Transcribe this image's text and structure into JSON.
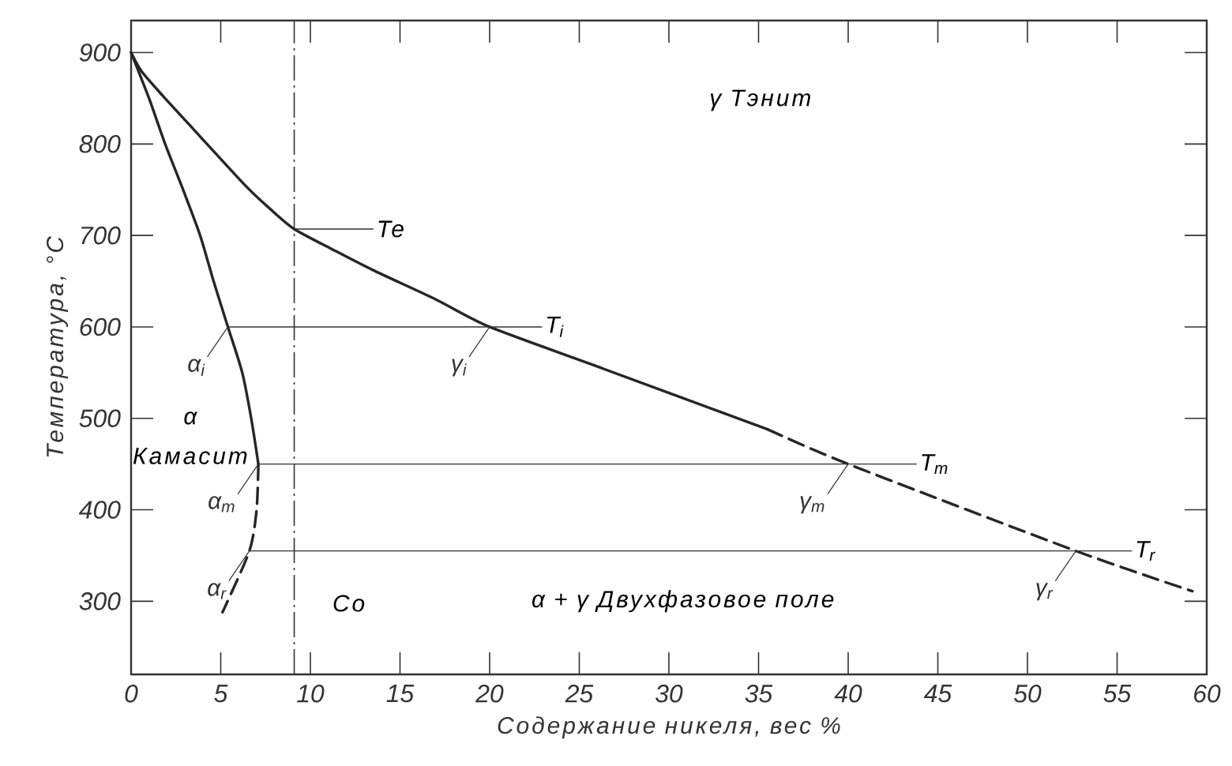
{
  "chart_data": {
    "type": "line",
    "xlabel": "Содержание никеля, вес %",
    "ylabel": "Температура, °C",
    "xlim": [
      0,
      60
    ],
    "ylim": [
      220,
      935
    ],
    "xticks": [
      0,
      5,
      10,
      15,
      20,
      25,
      30,
      35,
      40,
      45,
      50,
      55,
      60
    ],
    "yticks": [
      300,
      400,
      500,
      600,
      700,
      800,
      900
    ],
    "series": [
      {
        "color": "#262626",
        "line_style": "solid",
        "x": [
          0,
          1.0,
          1.9,
          2.9,
          3.85,
          4.6,
          5.4,
          6.2,
          6.7,
          7.1
        ],
        "values": [
          900,
          850,
          800,
          750,
          700,
          650,
          600,
          550,
          500,
          450
        ]
      },
      {
        "color": "#262626",
        "line_style": "dashed",
        "x": [
          7.1,
          7.0,
          6.6,
          5.1
        ],
        "values": [
          450,
          400,
          355,
          288
        ]
      },
      {
        "color": "#262626",
        "line_style": "solid",
        "x": [
          0,
          0.6,
          1.8,
          3.3,
          4.7,
          6.5,
          7.7,
          9.1,
          11.3,
          13.5,
          17.0,
          20,
          26.1,
          35.5
        ],
        "values": [
          900,
          879,
          852,
          820,
          790,
          752,
          730,
          707,
          684,
          662,
          630,
          600,
          556,
          488
        ]
      },
      {
        "color": "#262626",
        "line_style": "dashed",
        "x": [
          35.5,
          40,
          52.7,
          59.2
        ],
        "values": [
          488,
          450,
          355,
          311
        ]
      },
      {
        "name": "Te",
        "color": "#333333",
        "line_style": "solid",
        "x": [
          9.1,
          13.5
        ],
        "values": [
          707,
          707
        ]
      },
      {
        "name": "T$_{i}$",
        "color": "#333333",
        "line_style": "solid",
        "x": [
          5.4,
          22.9
        ],
        "values": [
          600,
          600
        ]
      },
      {
        "name": "T$_{m}$",
        "color": "#333333",
        "line_style": "solid",
        "x": [
          7.1,
          43.8
        ],
        "values": [
          450,
          450
        ]
      },
      {
        "name": "T$_{r}$",
        "color": "#333333",
        "line_style": "solid",
        "x": [
          6.6,
          55.8
        ],
        "values": [
          355,
          355
        ]
      }
    ],
    "ref_lines": [
      {
        "axis": "x",
        "value": 9.1,
        "label": "Co",
        "line_style": "dashdot",
        "color": "#333333"
      }
    ],
    "annotations": [
      "γ Тэнит",
      "α",
      "Камасит",
      "α + γ Двухфазовое поле",
      {
        "text": "α$_{i}$",
        "x": 5.4,
        "y": 600
      },
      {
        "text": "γ$_{i}$",
        "x": 20,
        "y": 600
      },
      {
        "text": "α$_{m}$",
        "x": 7.1,
        "y": 450
      },
      {
        "text": "γ$_{m}$",
        "x": 40,
        "y": 450
      },
      {
        "text": "α$_{r}$",
        "x": 6.6,
        "y": 355
      },
      {
        "text": "γ$_{r}$",
        "x": 52.7,
        "y": 355
      }
    ]
  }
}
